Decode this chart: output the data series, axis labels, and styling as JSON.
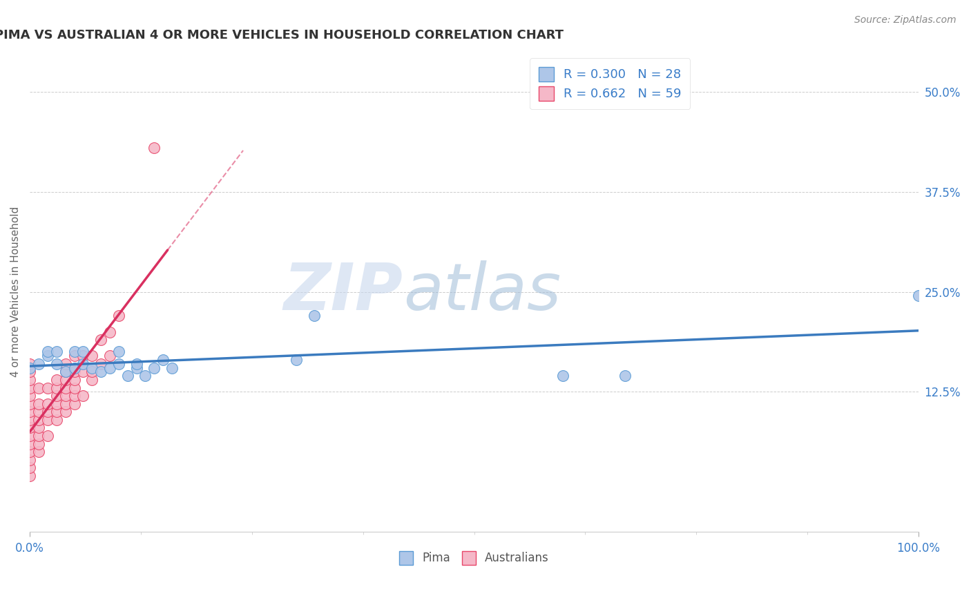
{
  "title": "PIMA VS AUSTRALIAN 4 OR MORE VEHICLES IN HOUSEHOLD CORRELATION CHART",
  "source_text": "Source: ZipAtlas.com",
  "ylabel": "4 or more Vehicles in Household",
  "xlim": [
    0,
    1.0
  ],
  "ylim": [
    -0.05,
    0.55
  ],
  "xtick_labels_bottom": [
    "0.0%",
    "100.0%"
  ],
  "xtick_vals_bottom": [
    0.0,
    1.0
  ],
  "ytick_vals": [
    0.125,
    0.25,
    0.375,
    0.5
  ],
  "right_ytick_labels": [
    "12.5%",
    "25.0%",
    "37.5%",
    "50.0%"
  ],
  "watermark_zip": "ZIP",
  "watermark_atlas": "atlas",
  "pima_color": "#aec6e8",
  "pima_edge_color": "#5b9bd5",
  "australians_color": "#f5b8c8",
  "australians_edge_color": "#e8476a",
  "pima_line_color": "#3b7bbf",
  "australians_line_color": "#d93060",
  "pima_R": 0.3,
  "pima_N": 28,
  "australians_R": 0.662,
  "australians_N": 59,
  "legend_label_color": "#3a7dc9",
  "source_color": "#888888",
  "axis_label_color": "#666666",
  "tick_label_color": "#3a7dc9",
  "grid_color": "#cccccc",
  "pima_x": [
    0.0,
    0.01,
    0.02,
    0.02,
    0.03,
    0.03,
    0.04,
    0.05,
    0.05,
    0.06,
    0.06,
    0.07,
    0.08,
    0.09,
    0.1,
    0.1,
    0.11,
    0.12,
    0.12,
    0.13,
    0.14,
    0.15,
    0.16,
    0.3,
    0.32,
    0.6,
    0.67,
    1.0
  ],
  "pima_y": [
    0.155,
    0.16,
    0.17,
    0.175,
    0.16,
    0.175,
    0.15,
    0.155,
    0.175,
    0.16,
    0.175,
    0.155,
    0.15,
    0.155,
    0.16,
    0.175,
    0.145,
    0.155,
    0.16,
    0.145,
    0.155,
    0.165,
    0.155,
    0.165,
    0.22,
    0.145,
    0.145,
    0.245
  ],
  "australians_x": [
    0.0,
    0.0,
    0.0,
    0.0,
    0.0,
    0.0,
    0.0,
    0.0,
    0.0,
    0.0,
    0.0,
    0.0,
    0.0,
    0.0,
    0.0,
    0.01,
    0.01,
    0.01,
    0.01,
    0.01,
    0.01,
    0.01,
    0.01,
    0.02,
    0.02,
    0.02,
    0.02,
    0.02,
    0.03,
    0.03,
    0.03,
    0.03,
    0.03,
    0.03,
    0.04,
    0.04,
    0.04,
    0.04,
    0.04,
    0.04,
    0.04,
    0.05,
    0.05,
    0.05,
    0.05,
    0.05,
    0.05,
    0.06,
    0.06,
    0.06,
    0.07,
    0.07,
    0.07,
    0.08,
    0.08,
    0.09,
    0.09,
    0.1,
    0.14
  ],
  "australians_y": [
    0.02,
    0.03,
    0.04,
    0.05,
    0.06,
    0.07,
    0.08,
    0.09,
    0.1,
    0.11,
    0.12,
    0.13,
    0.14,
    0.15,
    0.16,
    0.05,
    0.06,
    0.07,
    0.08,
    0.09,
    0.1,
    0.11,
    0.13,
    0.07,
    0.09,
    0.1,
    0.11,
    0.13,
    0.09,
    0.1,
    0.11,
    0.12,
    0.13,
    0.14,
    0.1,
    0.11,
    0.12,
    0.13,
    0.14,
    0.15,
    0.16,
    0.11,
    0.12,
    0.13,
    0.14,
    0.15,
    0.17,
    0.12,
    0.15,
    0.17,
    0.14,
    0.15,
    0.17,
    0.16,
    0.19,
    0.17,
    0.2,
    0.22,
    0.43
  ],
  "aus_line_x_end": 0.155,
  "aus_line_x_dash_end": 0.24,
  "pima_line_x_start": 0.0,
  "pima_line_x_end": 1.0,
  "pima_line_y_start": 0.148,
  "pima_line_y_end": 0.218
}
